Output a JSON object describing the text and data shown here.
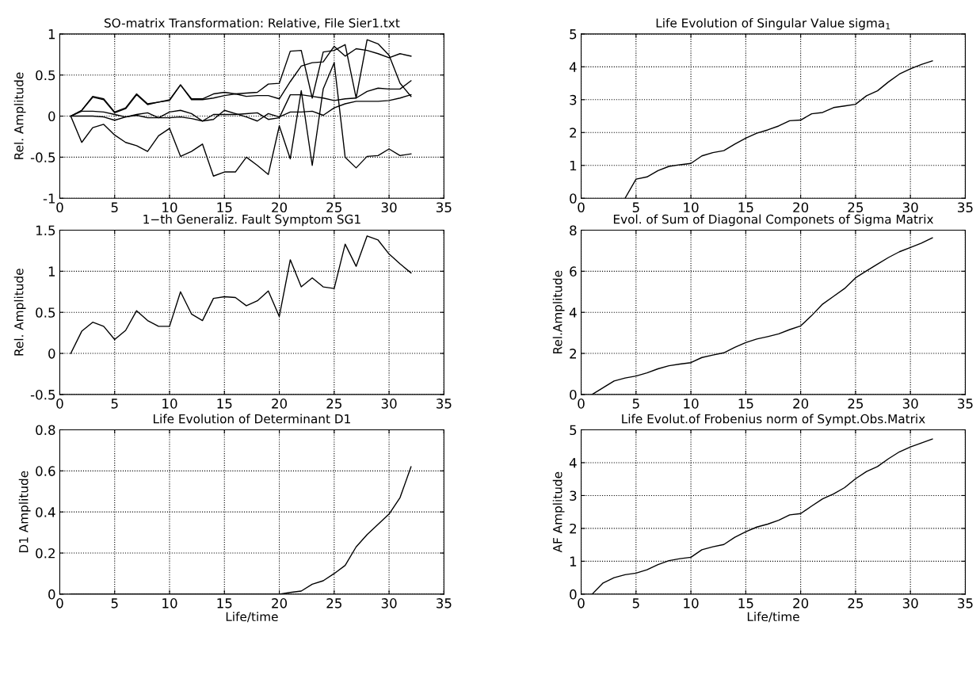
{
  "chart_data": [
    {
      "type": "line",
      "title": "SO-matrix Transformation: Relative, File Sier1.txt",
      "ylabel": "Rel. Amplitude",
      "xlim": [
        0,
        35
      ],
      "xticks": [
        0,
        5,
        10,
        15,
        20,
        25,
        30,
        35
      ],
      "ylim": [
        -1,
        1
      ],
      "yticks": [
        -1,
        -0.5,
        0,
        0.5,
        1
      ],
      "grid": true,
      "x": [
        1,
        2,
        3,
        4,
        5,
        6,
        7,
        8,
        9,
        10,
        11,
        12,
        13,
        14,
        15,
        16,
        17,
        18,
        19,
        20,
        21,
        22,
        23,
        24,
        25,
        26,
        27,
        28,
        29,
        30,
        31,
        32
      ],
      "series": [
        {
          "color": "#000000",
          "values": [
            0,
            -0.32,
            -0.14,
            -0.1,
            -0.23,
            -0.32,
            -0.36,
            -0.43,
            -0.24,
            -0.15,
            -0.49,
            -0.43,
            -0.34,
            -0.73,
            -0.68,
            -0.68,
            -0.5,
            -0.6,
            -0.71,
            -0.12,
            -0.52,
            0.31,
            -0.6,
            0.33,
            0.65,
            -0.5,
            -0.63,
            -0.49,
            -0.48,
            -0.4,
            -0.48,
            -0.46
          ]
        },
        {
          "color": "#000000",
          "values": [
            0,
            0.07,
            0.24,
            0.21,
            0.05,
            0.1,
            0.27,
            0.15,
            0.17,
            0.2,
            0.38,
            0.21,
            0.21,
            0.27,
            0.29,
            0.27,
            0.28,
            0.29,
            0.39,
            0.4,
            0.79,
            0.8,
            0.22,
            0.78,
            0.8,
            0.87,
            0.22,
            0.93,
            0.88,
            0.74,
            0.4,
            0.24
          ]
        },
        {
          "color": "#000000",
          "values": [
            0,
            0.07,
            0.23,
            0.2,
            0.04,
            0.09,
            0.26,
            0.14,
            0.17,
            0.19,
            0.38,
            0.2,
            0.2,
            0.22,
            0.25,
            0.27,
            0.24,
            0.25,
            0.25,
            0.21,
            0.42,
            0.61,
            0.65,
            0.66,
            0.85,
            0.73,
            0.82,
            0.8,
            0.76,
            0.71,
            0.76,
            0.73
          ]
        },
        {
          "color": "#000000",
          "values": [
            0,
            0.06,
            0.06,
            0.05,
            0.02,
            -0.01,
            0.02,
            0.04,
            -0.02,
            0.05,
            0.07,
            0.03,
            -0.06,
            0.02,
            0.02,
            0.02,
            0.03,
            0.04,
            -0.04,
            -0.02,
            0.26,
            0.26,
            0.24,
            0.22,
            0.19,
            0.21,
            0.22,
            0.3,
            0.34,
            0.33,
            0.33,
            0.43
          ]
        },
        {
          "color": "#000000",
          "values": [
            0,
            0,
            0,
            -0.01,
            -0.05,
            -0.01,
            0.01,
            -0.02,
            -0.02,
            -0.02,
            -0.01,
            -0.03,
            -0.06,
            -0.04,
            0.07,
            0.03,
            -0.01,
            -0.06,
            0.03,
            -0.01,
            0.05,
            0.05,
            0.06,
            0.01,
            0.1,
            0.15,
            0.18,
            0.18,
            0.18,
            0.19,
            0.22,
            0.26
          ]
        }
      ]
    },
    {
      "type": "line",
      "title": "Life Evolution of Singular Value sigma$_{1}$",
      "xlim": [
        0,
        35
      ],
      "xticks": [
        0,
        5,
        10,
        15,
        20,
        25,
        30,
        35
      ],
      "ylim": [
        0,
        5
      ],
      "yticks": [
        0,
        1,
        2,
        3,
        4,
        5
      ],
      "grid": true,
      "x": [
        4,
        5,
        6,
        7,
        8,
        9,
        10,
        11,
        12,
        13,
        14,
        15,
        16,
        17,
        18,
        19,
        20,
        21,
        22,
        23,
        24,
        25,
        26,
        27,
        28,
        29,
        30,
        31,
        32
      ],
      "series": [
        {
          "color": "#000000",
          "values": [
            0,
            0.58,
            0.65,
            0.84,
            0.97,
            1.02,
            1.06,
            1.29,
            1.39,
            1.45,
            1.65,
            1.83,
            1.98,
            2.08,
            2.2,
            2.36,
            2.38,
            2.57,
            2.61,
            2.76,
            2.81,
            2.86,
            3.12,
            3.27,
            3.54,
            3.78,
            3.94,
            4.07,
            4.18
          ]
        }
      ]
    },
    {
      "type": "line",
      "title": "1−th Generaliz. Fault Symptom SG1",
      "ylabel": "Rel. Amplitude",
      "xlim": [
        0,
        35
      ],
      "xticks": [
        0,
        5,
        10,
        15,
        20,
        25,
        30,
        35
      ],
      "ylim": [
        -0.5,
        1.5
      ],
      "yticks": [
        -0.5,
        0,
        0.5,
        1,
        1.5
      ],
      "grid": true,
      "x": [
        1,
        2,
        3,
        4,
        5,
        6,
        7,
        8,
        9,
        10,
        11,
        12,
        13,
        14,
        15,
        16,
        17,
        18,
        19,
        20,
        21,
        22,
        23,
        24,
        25,
        26,
        27,
        28,
        29,
        30,
        31,
        32
      ],
      "series": [
        {
          "color": "#000000",
          "values": [
            0,
            0.27,
            0.38,
            0.33,
            0.17,
            0.28,
            0.52,
            0.4,
            0.33,
            0.33,
            0.75,
            0.48,
            0.4,
            0.67,
            0.69,
            0.68,
            0.58,
            0.64,
            0.76,
            0.45,
            1.14,
            0.81,
            0.92,
            0.81,
            0.79,
            1.33,
            1.06,
            1.43,
            1.38,
            1.21,
            1.09,
            0.98
          ]
        }
      ]
    },
    {
      "type": "line",
      "title": "Evol. of Sum of Diagonal Componets of Sigma Matrix",
      "ylabel": "Rel.Amplitude",
      "xlim": [
        0,
        35
      ],
      "xticks": [
        0,
        5,
        10,
        15,
        20,
        25,
        30,
        35
      ],
      "ylim": [
        0,
        8
      ],
      "yticks": [
        0,
        2,
        4,
        6,
        8
      ],
      "grid": true,
      "x": [
        1,
        2,
        3,
        4,
        5,
        6,
        7,
        8,
        9,
        10,
        11,
        12,
        13,
        14,
        15,
        16,
        17,
        18,
        19,
        20,
        21,
        22,
        23,
        24,
        25,
        26,
        27,
        28,
        29,
        30,
        31,
        32
      ],
      "series": [
        {
          "color": "#000000",
          "values": [
            0,
            0.33,
            0.66,
            0.8,
            0.9,
            1.05,
            1.25,
            1.4,
            1.48,
            1.55,
            1.8,
            1.92,
            2.03,
            2.3,
            2.53,
            2.7,
            2.82,
            2.95,
            3.16,
            3.34,
            3.84,
            4.4,
            4.78,
            5.16,
            5.68,
            6.02,
            6.35,
            6.67,
            6.95,
            7.16,
            7.37,
            7.63
          ]
        }
      ]
    },
    {
      "type": "line",
      "title": "Life Evolution of Determinant D1",
      "xlabel": "Life/time",
      "ylabel": "D1 Amplitude",
      "xlim": [
        0,
        35
      ],
      "xticks": [
        0,
        5,
        10,
        15,
        20,
        25,
        30,
        35
      ],
      "ylim": [
        0,
        0.8
      ],
      "yticks": [
        0,
        0.2,
        0.4,
        0.6,
        0.8
      ],
      "grid": true,
      "x": [
        1,
        2,
        3,
        4,
        5,
        6,
        7,
        8,
        9,
        10,
        11,
        12,
        13,
        14,
        15,
        16,
        17,
        18,
        19,
        20,
        21,
        22,
        23,
        24,
        25,
        26,
        27,
        28,
        29,
        30,
        31,
        32
      ],
      "series": [
        {
          "color": "#000000",
          "values": [
            0,
            0,
            0,
            0,
            0,
            0,
            0,
            0,
            0,
            0,
            0,
            0,
            0,
            0,
            0,
            0,
            0,
            0,
            0,
            0,
            0.008,
            0.015,
            0.048,
            0.065,
            0.1,
            0.14,
            0.23,
            0.29,
            0.34,
            0.39,
            0.47,
            0.62
          ]
        }
      ]
    },
    {
      "type": "line",
      "title": "Life Evolut.of Frobenius norm of Sympt.Obs.Matrix",
      "xlabel": "Life/time",
      "ylabel": "AF Amplitude",
      "xlim": [
        0,
        35
      ],
      "xticks": [
        0,
        5,
        10,
        15,
        20,
        25,
        30,
        35
      ],
      "ylim": [
        0,
        5
      ],
      "yticks": [
        0,
        1,
        2,
        3,
        4,
        5
      ],
      "grid": true,
      "x": [
        1,
        2,
        3,
        4,
        5,
        6,
        7,
        8,
        9,
        10,
        11,
        12,
        13,
        14,
        15,
        16,
        17,
        18,
        19,
        20,
        21,
        22,
        23,
        24,
        25,
        26,
        27,
        28,
        29,
        30,
        31,
        32
      ],
      "series": [
        {
          "color": "#000000",
          "values": [
            0,
            0.34,
            0.5,
            0.59,
            0.64,
            0.74,
            0.9,
            1.02,
            1.08,
            1.12,
            1.35,
            1.44,
            1.51,
            1.73,
            1.9,
            2.04,
            2.13,
            2.25,
            2.41,
            2.45,
            2.68,
            2.9,
            3.05,
            3.24,
            3.51,
            3.73,
            3.88,
            4.12,
            4.33,
            4.48,
            4.6,
            4.72
          ]
        }
      ]
    }
  ]
}
